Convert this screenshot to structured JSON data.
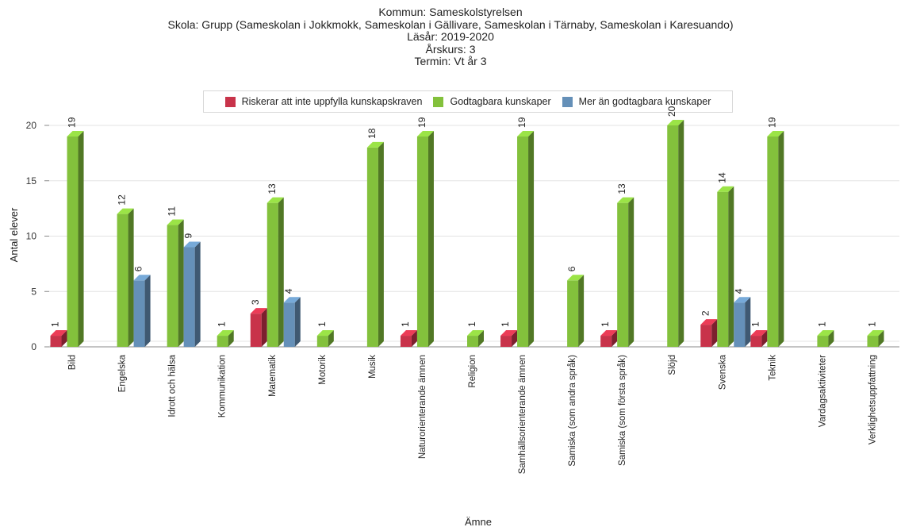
{
  "titles": {
    "line1": "Kommun: Sameskolstyrelsen",
    "line2": "Skola: Grupp (Sameskolan i Jokkmokk, Sameskolan i Gällivare, Sameskolan i Tärnaby, Sameskolan i Karesuando)",
    "line3": "Läsår: 2019-2020",
    "line4": "Årskurs: 3",
    "line5": "Termin: Vt år 3"
  },
  "legend": [
    {
      "label": "Riskerar att inte uppfylla kunskapskraven",
      "color": "#c8334a"
    },
    {
      "label": "Godtagbara kunskaper",
      "color": "#83c13c"
    },
    {
      "label": "Mer än godtagbara kunskaper",
      "color": "#6590b8"
    }
  ],
  "chart_data": {
    "type": "bar",
    "xlabel": "Ämne",
    "ylabel": "Antal elever",
    "ylim": [
      0,
      20
    ],
    "yticks": [
      0,
      5,
      10,
      15,
      20
    ],
    "grid": true,
    "legend_position": "top",
    "categories": [
      "Bild",
      "Engelska",
      "Idrott och hälsa",
      "Kommunikation",
      "Matematik",
      "Motorik",
      "Musik",
      "Naturorienterande ämnen",
      "Religion",
      "Samhällsorienterande ämnen",
      "Samiska (som andra språk)",
      "Samiska (som första språk)",
      "Slöjd",
      "Svenska",
      "Teknik",
      "Vardagsaktiviteter",
      "Verklighetsuppfattning"
    ],
    "series": [
      {
        "name": "Riskerar att inte uppfylla kunskapskraven",
        "color": "#c8334a",
        "values": [
          1,
          null,
          null,
          null,
          3,
          null,
          null,
          1,
          null,
          1,
          null,
          1,
          null,
          2,
          1,
          null,
          null
        ]
      },
      {
        "name": "Godtagbara kunskaper",
        "color": "#83c13c",
        "values": [
          19,
          12,
          11,
          1,
          13,
          1,
          18,
          19,
          1,
          19,
          6,
          13,
          20,
          14,
          19,
          1,
          1
        ]
      },
      {
        "name": "Mer än godtagbara kunskaper",
        "color": "#6590b8",
        "values": [
          null,
          6,
          9,
          null,
          4,
          null,
          null,
          null,
          null,
          null,
          null,
          null,
          null,
          4,
          null,
          null,
          null
        ]
      }
    ]
  }
}
